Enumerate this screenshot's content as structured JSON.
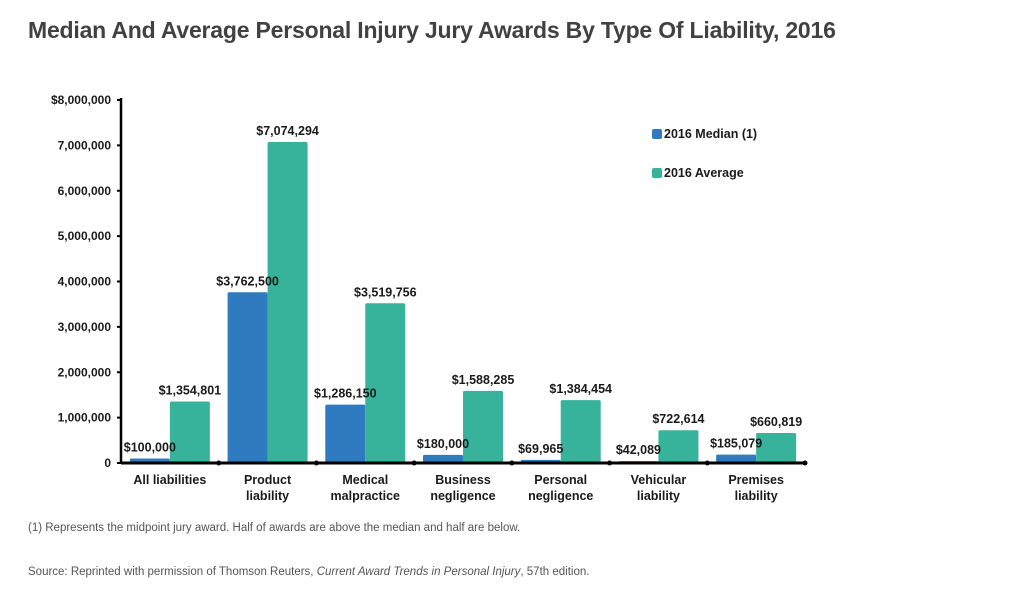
{
  "page": {
    "title": "Median And Average Personal Injury Jury Awards By Type Of Liability, 2016",
    "footnote": "(1) Represents the midpoint jury award. Half of awards are above the median and half are below.",
    "source_prefix": "Source: Reprinted with permission of Thomson Reuters, ",
    "source_italic": "Current Award Trends in Personal Injury",
    "source_suffix": ", 57th edition."
  },
  "colors": {
    "median": "#2f7bbf",
    "average": "#36b39a",
    "axis": "#000000",
    "title": "#414141",
    "footnote": "#555555"
  },
  "chart_data": {
    "type": "bar",
    "title": "Median And Average Personal Injury Jury Awards By Type Of Liability, 2016",
    "xlabel": "",
    "ylabel": "",
    "ylim": [
      0,
      8000000
    ],
    "grid": false,
    "legend_position": "top-right",
    "y_ticks": [
      {
        "value": 0,
        "label": "0"
      },
      {
        "value": 1000000,
        "label": "1,000,000"
      },
      {
        "value": 2000000,
        "label": "2,000,000"
      },
      {
        "value": 3000000,
        "label": "3,000,000"
      },
      {
        "value": 4000000,
        "label": "4,000,000"
      },
      {
        "value": 5000000,
        "label": "5,000,000"
      },
      {
        "value": 6000000,
        "label": "6,000,000"
      },
      {
        "value": 7000000,
        "label": "7,000,000"
      },
      {
        "value": 8000000,
        "label": "$8,000,000"
      }
    ],
    "categories": [
      [
        "All liabilities"
      ],
      [
        "Product",
        "liability"
      ],
      [
        "Medical",
        "malpractice"
      ],
      [
        "Business",
        "negligence"
      ],
      [
        "Personal",
        "negligence"
      ],
      [
        "Vehicular",
        "liability"
      ],
      [
        "Premises",
        "liability"
      ]
    ],
    "series": [
      {
        "name": "2016 Median (1)",
        "color": "#2f7bbf",
        "values": [
          100000,
          3762500,
          1286150,
          180000,
          69965,
          42089,
          185079
        ],
        "labels": [
          "$100,000",
          "$3,762,500",
          "$1,286,150",
          "$180,000",
          "$69,965",
          "$42,089",
          "$185,079"
        ]
      },
      {
        "name": "2016 Average",
        "color": "#36b39a",
        "values": [
          1354801,
          7074294,
          3519756,
          1588285,
          1384454,
          722614,
          660819
        ],
        "labels": [
          "$1,354,801",
          "$7,074,294",
          "$3,519,756",
          "$1,588,285",
          "$1,384,454",
          "$722,614",
          "$660,819"
        ]
      }
    ]
  }
}
